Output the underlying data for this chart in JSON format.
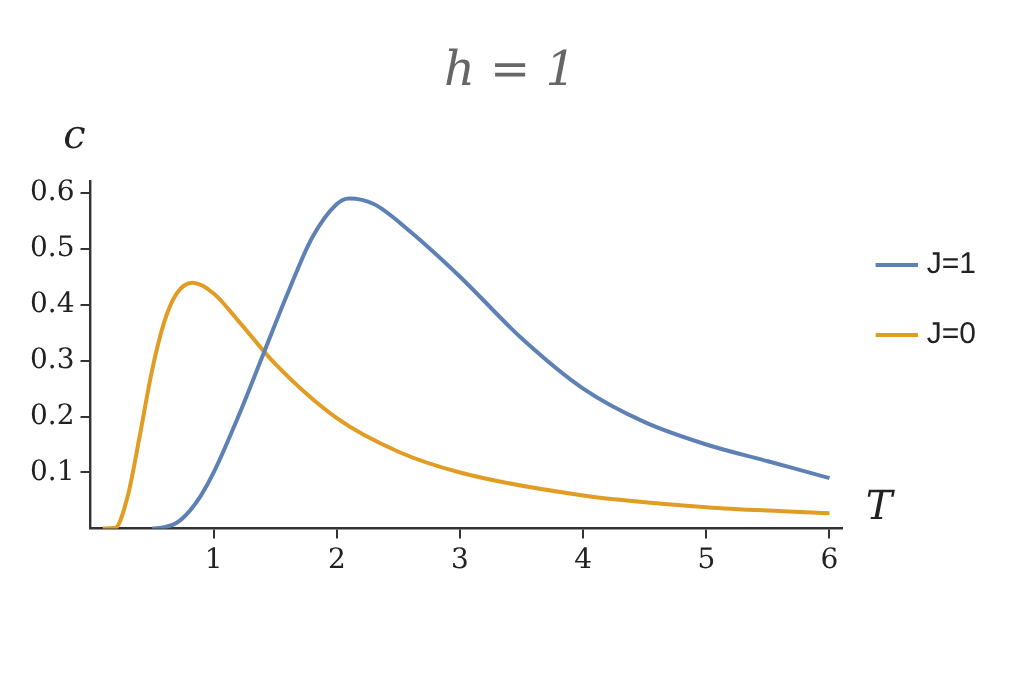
{
  "chart_data": {
    "type": "line",
    "title": "h = 1",
    "xlabel": "T",
    "ylabel": "c",
    "xlim": [
      0,
      6.1
    ],
    "xticks": [
      1,
      2,
      3,
      4,
      5,
      6
    ],
    "ylim": [
      0,
      0.62
    ],
    "yticks": [
      0.1,
      0.2,
      0.3,
      0.4,
      0.5,
      0.6
    ],
    "grid": false,
    "legend": "right",
    "marker": "none",
    "line_style": "solid",
    "series": [
      {
        "name": "J=1",
        "color": "#5e81b5",
        "x": [
          0.5,
          0.6,
          0.7,
          0.8,
          0.9,
          1.0,
          1.2,
          1.4,
          1.6,
          1.8,
          2.0,
          2.1,
          2.3,
          2.6,
          3.0,
          3.5,
          4.0,
          4.5,
          5.0,
          5.5,
          6.0
        ],
        "values": [
          0,
          0.002,
          0.01,
          0.03,
          0.06,
          0.1,
          0.2,
          0.31,
          0.42,
          0.52,
          0.58,
          0.59,
          0.58,
          0.53,
          0.45,
          0.34,
          0.25,
          0.19,
          0.15,
          0.12,
          0.09
        ]
      },
      {
        "name": "J=0",
        "color": "#e19c24",
        "x": [
          0.1,
          0.2,
          0.3,
          0.4,
          0.5,
          0.6,
          0.7,
          0.83,
          1.0,
          1.2,
          1.5,
          2.0,
          2.5,
          3.0,
          4.0,
          5.0,
          6.0
        ],
        "values": [
          0,
          0.001,
          0.056,
          0.166,
          0.283,
          0.37,
          0.42,
          0.439,
          0.42,
          0.371,
          0.294,
          0.197,
          0.137,
          0.1,
          0.059,
          0.038,
          0.027
        ]
      }
    ]
  }
}
